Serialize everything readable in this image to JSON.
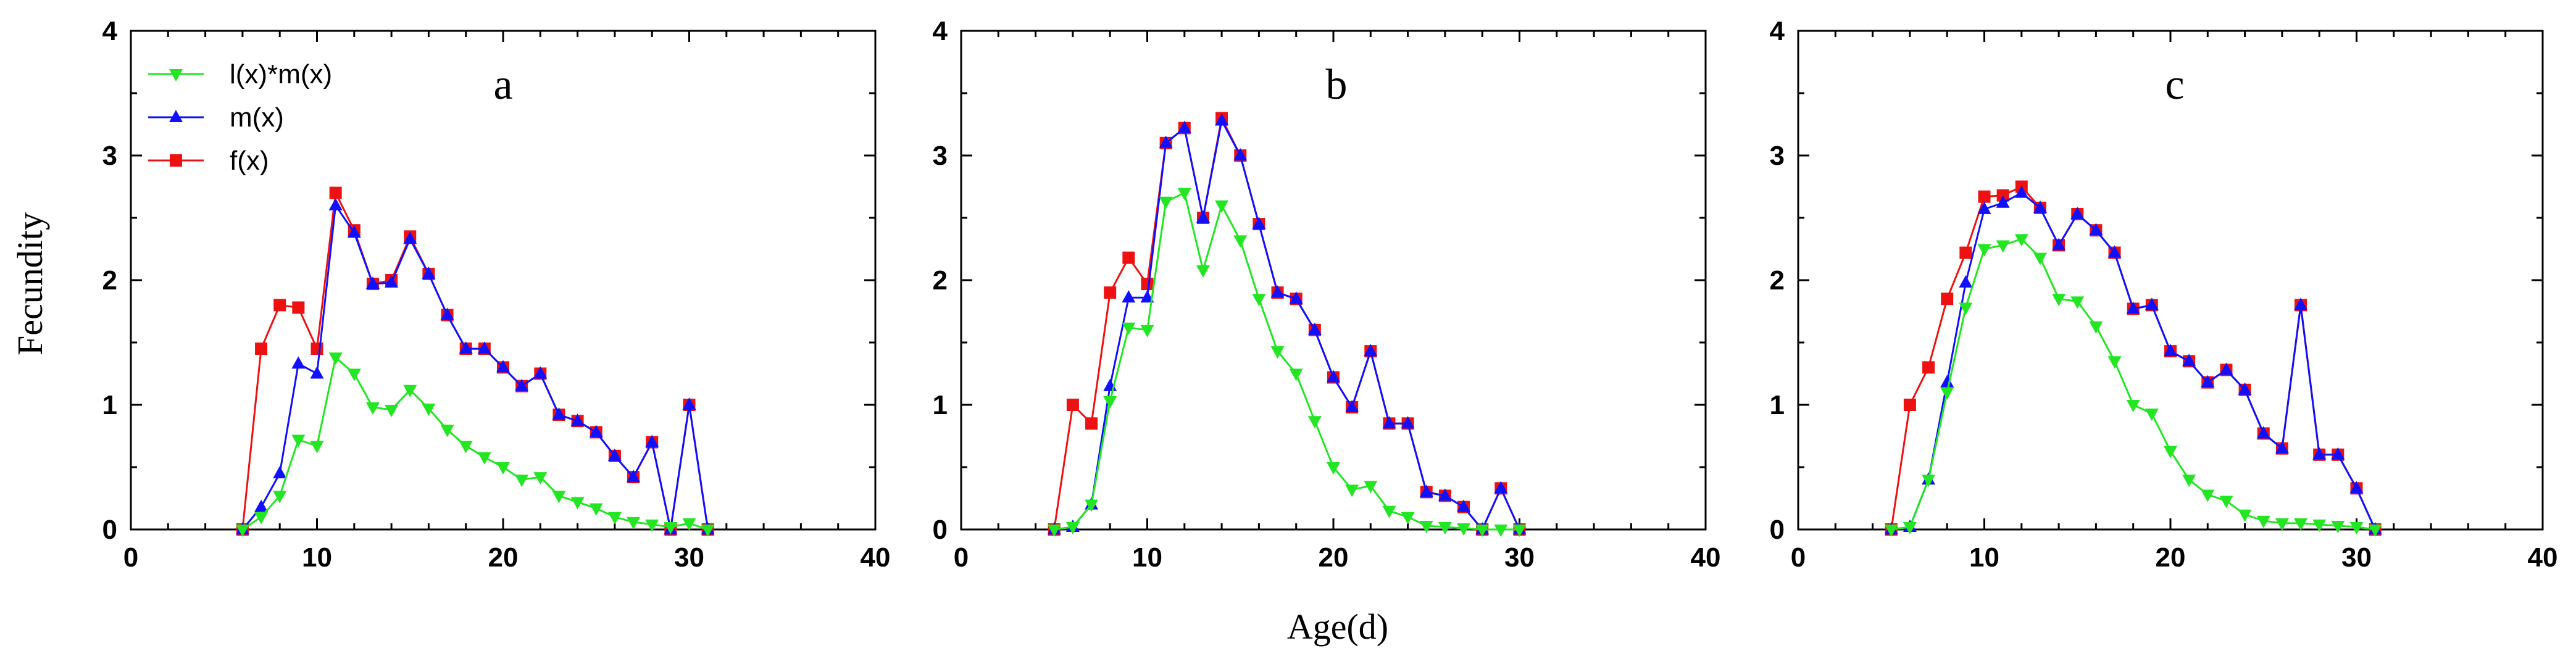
{
  "chart_data": [
    {
      "type": "line",
      "title": "a",
      "xlabel": "Age(d)",
      "ylabel": "Fecundity",
      "xlim": [
        0,
        40
      ],
      "ylim": [
        0,
        4
      ],
      "xticks": [
        "0",
        "10",
        "20",
        "30",
        "40"
      ],
      "yticks": [
        "0",
        "1",
        "2",
        "3",
        "4"
      ],
      "legend": {
        "position": "top-left",
        "entries": [
          "l(x)*m(x)",
          "m(x)",
          "f(x)"
        ]
      },
      "series": [
        {
          "name": "l(x)*m(x)",
          "color": "#22e622",
          "marker": "triangle-down",
          "x": [
            6,
            7,
            8,
            9,
            10,
            11,
            12,
            13,
            14,
            15,
            16,
            17,
            18,
            19,
            20,
            21,
            22,
            23,
            24,
            25,
            26,
            27,
            28,
            29,
            30,
            31
          ],
          "y": [
            0,
            0.1,
            0.27,
            0.72,
            0.67,
            1.38,
            1.25,
            0.98,
            0.96,
            1.12,
            0.97,
            0.8,
            0.67,
            0.58,
            0.5,
            0.4,
            0.42,
            0.27,
            0.22,
            0.17,
            0.1,
            0.06,
            0.04,
            0.02,
            0.05,
            0
          ]
        },
        {
          "name": "m(x)",
          "color": "#1010ff",
          "marker": "triangle-up",
          "x": [
            6,
            7,
            8,
            9,
            10,
            11,
            12,
            13,
            14,
            15,
            16,
            17,
            18,
            19,
            20,
            21,
            22,
            23,
            24,
            25,
            26,
            27,
            28,
            29,
            30,
            31
          ],
          "y": [
            0,
            0.18,
            0.45,
            1.33,
            1.25,
            2.6,
            2.38,
            1.97,
            1.98,
            2.33,
            2.05,
            1.72,
            1.45,
            1.45,
            1.3,
            1.15,
            1.25,
            0.92,
            0.87,
            0.78,
            0.59,
            0.42,
            0.7,
            0,
            1,
            0
          ]
        },
        {
          "name": "f(x)",
          "color": "#ee1111",
          "marker": "square",
          "x": [
            6,
            7,
            8,
            9,
            10,
            11,
            12,
            13,
            14,
            15,
            16,
            17,
            18,
            19,
            20,
            21,
            22,
            23,
            24,
            25,
            26,
            27,
            28,
            29,
            30,
            31
          ],
          "y": [
            0,
            1.45,
            1.8,
            1.78,
            1.45,
            2.7,
            2.4,
            1.97,
            2,
            2.35,
            2.05,
            1.72,
            1.45,
            1.45,
            1.3,
            1.15,
            1.25,
            0.92,
            0.87,
            0.78,
            0.59,
            0.42,
            0.7,
            0,
            1,
            0
          ]
        }
      ]
    },
    {
      "type": "line",
      "title": "b",
      "xlabel": "Age(d)",
      "ylabel": "Fecundity",
      "xlim": [
        0,
        40
      ],
      "ylim": [
        0,
        4
      ],
      "xticks": [
        "0",
        "10",
        "20",
        "30",
        "40"
      ],
      "yticks": [
        "0",
        "1",
        "2",
        "3",
        "4"
      ],
      "series": [
        {
          "name": "l(x)*m(x)",
          "color": "#22e622",
          "marker": "triangle-down",
          "x": [
            5,
            6,
            7,
            8,
            9,
            10,
            11,
            12,
            13,
            14,
            15,
            16,
            17,
            18,
            19,
            20,
            21,
            22,
            23,
            24,
            25,
            26,
            27,
            28,
            29,
            30
          ],
          "y": [
            0,
            0.02,
            0.2,
            1.03,
            1.62,
            1.6,
            2.63,
            2.7,
            2.08,
            2.6,
            2.32,
            1.85,
            1.43,
            1.25,
            0.87,
            0.5,
            0.32,
            0.35,
            0.15,
            0.1,
            0.03,
            0.02,
            0.01,
            0,
            0,
            0
          ]
        },
        {
          "name": "m(x)",
          "color": "#1010ff",
          "marker": "triangle-up",
          "x": [
            5,
            6,
            7,
            8,
            9,
            10,
            11,
            12,
            13,
            14,
            15,
            16,
            17,
            18,
            19,
            20,
            21,
            22,
            23,
            24,
            25,
            26,
            27,
            28,
            29,
            30
          ],
          "y": [
            0,
            0.02,
            0.2,
            1.15,
            1.86,
            1.86,
            3.1,
            3.22,
            2.5,
            3.28,
            3.0,
            2.45,
            1.9,
            1.85,
            1.6,
            1.22,
            0.98,
            1.43,
            0.85,
            0.85,
            0.3,
            0.27,
            0.18,
            0,
            0.33,
            0
          ]
        },
        {
          "name": "f(x)",
          "color": "#ee1111",
          "marker": "square",
          "x": [
            5,
            6,
            7,
            8,
            9,
            10,
            11,
            12,
            13,
            14,
            15,
            16,
            17,
            18,
            19,
            20,
            21,
            22,
            23,
            24,
            25,
            26,
            27,
            28,
            29,
            30
          ],
          "y": [
            0,
            1.0,
            0.85,
            1.9,
            2.18,
            1.97,
            3.1,
            3.22,
            2.5,
            3.3,
            3.0,
            2.45,
            1.9,
            1.85,
            1.6,
            1.22,
            0.98,
            1.43,
            0.85,
            0.85,
            0.3,
            0.27,
            0.18,
            0,
            0.33,
            0
          ]
        }
      ]
    },
    {
      "type": "line",
      "title": "c",
      "xlabel": "Age(d)",
      "ylabel": "Fecundity",
      "xlim": [
        0,
        40
      ],
      "ylim": [
        0,
        4
      ],
      "xticks": [
        "0",
        "10",
        "20",
        "30",
        "40"
      ],
      "yticks": [
        "0",
        "1",
        "2",
        "3",
        "4"
      ],
      "series": [
        {
          "name": "l(x)*m(x)",
          "color": "#22e622",
          "marker": "triangle-down",
          "x": [
            5,
            6,
            7,
            8,
            9,
            10,
            11,
            12,
            13,
            14,
            15,
            16,
            17,
            18,
            19,
            20,
            21,
            22,
            23,
            24,
            25,
            26,
            27,
            28,
            29,
            30,
            31
          ],
          "y": [
            0,
            0.02,
            0.4,
            1.1,
            1.78,
            2.25,
            2.28,
            2.33,
            2.18,
            1.85,
            1.83,
            1.63,
            1.35,
            1.0,
            0.93,
            0.63,
            0.4,
            0.28,
            0.23,
            0.12,
            0.07,
            0.05,
            0.05,
            0.04,
            0.03,
            0.02,
            0
          ]
        },
        {
          "name": "m(x)",
          "color": "#1010ff",
          "marker": "triangle-up",
          "x": [
            5,
            6,
            7,
            8,
            9,
            10,
            11,
            12,
            13,
            14,
            15,
            16,
            17,
            18,
            19,
            20,
            21,
            22,
            23,
            24,
            25,
            26,
            27,
            28,
            29,
            30,
            31
          ],
          "y": [
            0,
            0.02,
            0.4,
            1.18,
            1.98,
            2.57,
            2.62,
            2.7,
            2.58,
            2.28,
            2.53,
            2.4,
            2.22,
            1.77,
            1.8,
            1.43,
            1.35,
            1.18,
            1.28,
            1.12,
            0.77,
            0.65,
            1.8,
            0.6,
            0.6,
            0.33,
            0
          ]
        },
        {
          "name": "f(x)",
          "color": "#ee1111",
          "marker": "square",
          "x": [
            5,
            6,
            7,
            8,
            9,
            10,
            11,
            12,
            13,
            14,
            15,
            16,
            17,
            18,
            19,
            20,
            21,
            22,
            23,
            24,
            25,
            26,
            27,
            28,
            29,
            30,
            31
          ],
          "y": [
            0,
            1.0,
            1.3,
            1.85,
            2.22,
            2.67,
            2.68,
            2.75,
            2.58,
            2.28,
            2.53,
            2.4,
            2.22,
            1.77,
            1.8,
            1.43,
            1.35,
            1.18,
            1.28,
            1.12,
            0.77,
            0.65,
            1.8,
            0.6,
            0.6,
            0.33,
            0
          ]
        }
      ]
    }
  ]
}
